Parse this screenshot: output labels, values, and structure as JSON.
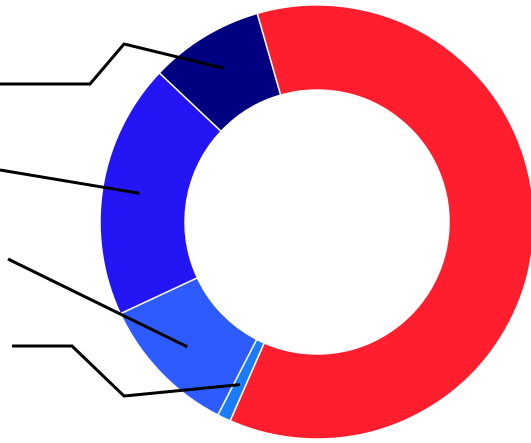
{
  "chart_data": {
    "type": "pie",
    "style": "donut",
    "legend": "none",
    "slices": [
      {
        "value": 61.0,
        "color": "#fe1e2e"
      },
      {
        "value": 1.0,
        "color": "#1a7cf8"
      },
      {
        "value": 10.5,
        "color": "#2e5bfe"
      },
      {
        "value": 19.0,
        "color": "#2416f4"
      },
      {
        "value": 8.5,
        "color": "#010081"
      }
    ]
  }
}
